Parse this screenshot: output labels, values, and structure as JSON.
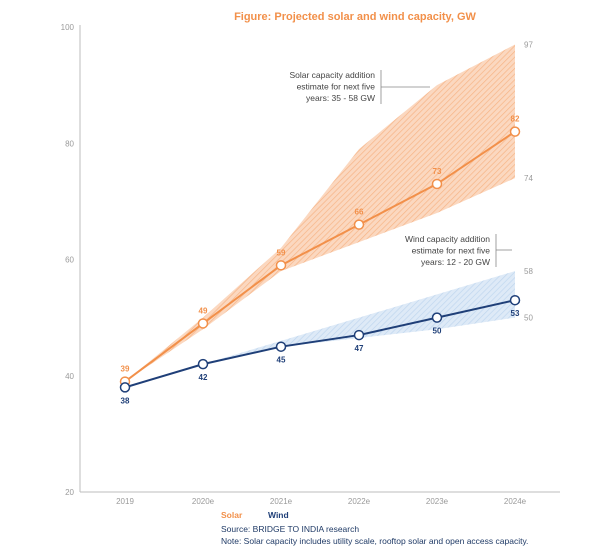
{
  "chart_data": {
    "type": "line",
    "title": "Figure: Projected solar and wind capacity, GW",
    "categories": [
      "2019",
      "2020e",
      "2021e",
      "2022e",
      "2023e",
      "2024e"
    ],
    "ylim": [
      20,
      100
    ],
    "yticks": [
      20,
      40,
      60,
      80,
      100
    ],
    "grid": false,
    "legend_position": "bottom-left",
    "series": [
      {
        "name": "Solar",
        "color": "#f2904a",
        "values": [
          39,
          49,
          59,
          66,
          73,
          82
        ],
        "labels": [
          "39",
          "49",
          "59",
          "66",
          "73",
          "82"
        ],
        "band_upper": [
          39,
          50,
          62,
          79,
          90,
          97
        ],
        "band_lower": [
          39,
          48,
          58,
          63,
          68,
          74
        ],
        "band_end_labels": [
          "97",
          "74"
        ]
      },
      {
        "name": "Wind",
        "color": "#1f3f78",
        "band_color": "#9fc1e6",
        "values": [
          38,
          42,
          45,
          47,
          50,
          53
        ],
        "labels": [
          "38",
          "42",
          "45",
          "47",
          "50",
          "53"
        ],
        "band_upper": [
          38,
          42,
          46,
          50,
          54,
          58
        ],
        "band_lower": [
          38,
          42,
          45,
          46.5,
          48,
          50
        ],
        "band_end_labels": [
          "58",
          "50"
        ]
      }
    ],
    "annotations": [
      {
        "series": "Solar",
        "lines": [
          "Solar capacity addition",
          "estimate for next five",
          "years: 35 - 58 GW"
        ]
      },
      {
        "series": "Wind",
        "lines": [
          "Wind capacity addition",
          "estimate for next five",
          "years: 12 - 20 GW"
        ]
      }
    ]
  },
  "footer": {
    "source": "Source: BRIDGE TO INDIA research",
    "note": "Note: Solar capacity includes utility scale, rooftop solar and open access capacity."
  }
}
